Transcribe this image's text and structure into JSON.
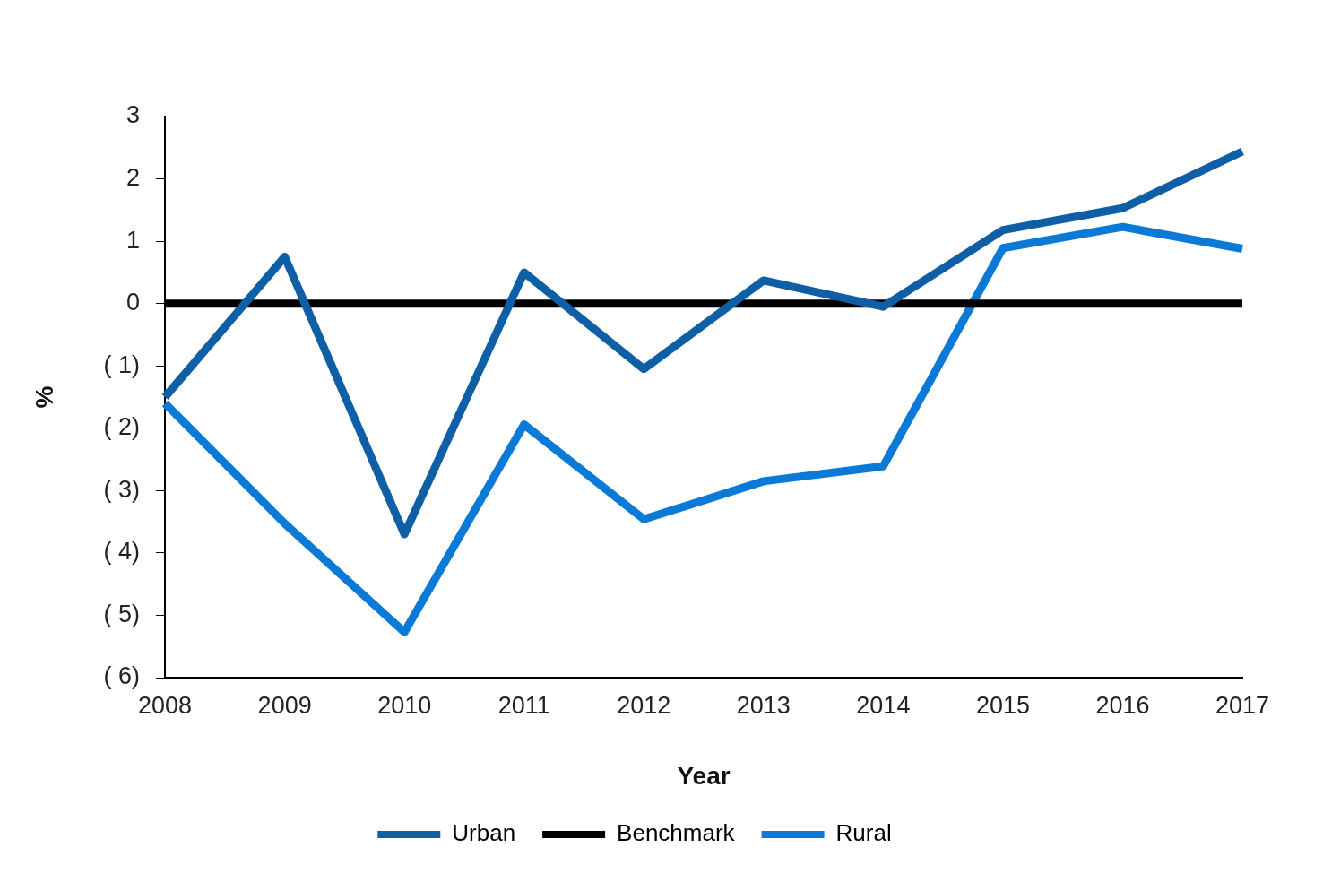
{
  "chart_data": {
    "type": "line",
    "xlabel": "Year",
    "ylabel": "%",
    "categories": [
      "2008",
      "2009",
      "2010",
      "2011",
      "2012",
      "2013",
      "2014",
      "2015",
      "2016",
      "2017"
    ],
    "series": [
      {
        "name": "Urban",
        "color": "#0f5fa6",
        "values": [
          -1.5,
          0.75,
          -3.7,
          0.5,
          -1.05,
          0.37,
          -0.05,
          1.18,
          1.53,
          2.44
        ]
      },
      {
        "name": "Benchmark",
        "color": "#000000",
        "values": [
          0,
          0,
          0,
          0,
          0,
          0,
          0,
          0,
          0,
          0
        ]
      },
      {
        "name": "Rural",
        "color": "#0a7ad6",
        "values": [
          -1.6,
          -3.53,
          -5.27,
          -1.94,
          -3.46,
          -2.85,
          -2.61,
          0.89,
          1.23,
          0.88
        ]
      }
    ],
    "ylim": [
      -6,
      3
    ],
    "yticks": [
      {
        "value": -6,
        "label": "( 6)"
      },
      {
        "value": -5,
        "label": "( 5)"
      },
      {
        "value": -4,
        "label": "( 4)"
      },
      {
        "value": -3,
        "label": "( 3)"
      },
      {
        "value": -2,
        "label": "( 2)"
      },
      {
        "value": -1,
        "label": "( 1)"
      },
      0,
      1,
      2,
      3
    ],
    "grid": false,
    "legend": "bottom",
    "marker": "none",
    "line_style": "solid"
  }
}
